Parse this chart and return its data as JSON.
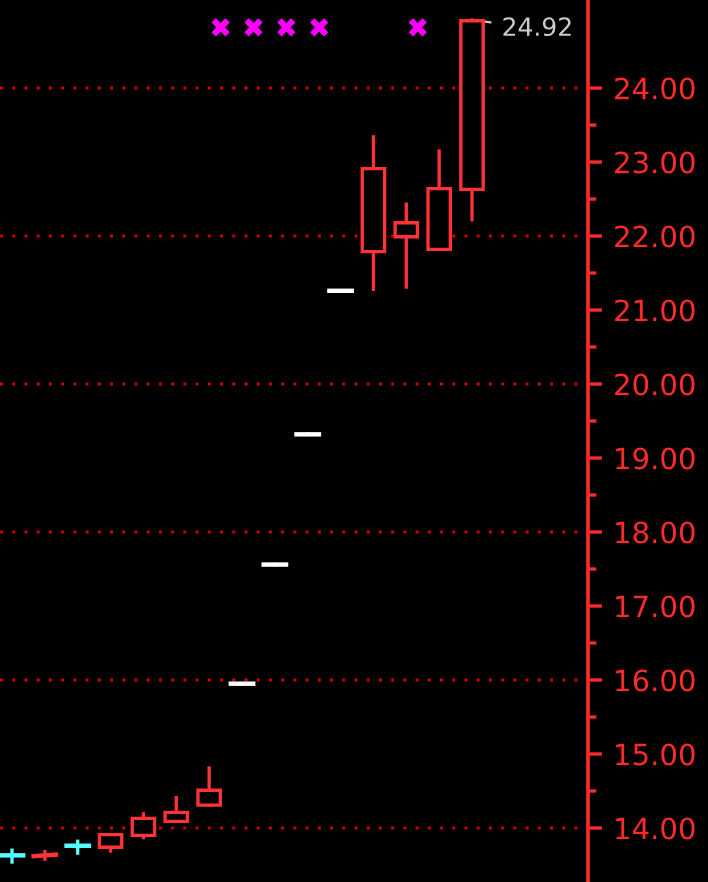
{
  "chart_data": {
    "type": "candlestick",
    "categories": [
      null,
      null,
      null,
      null,
      null,
      null,
      null,
      null,
      null,
      null,
      null,
      null,
      null,
      null,
      null
    ],
    "ohlc": [
      [
        13.63,
        13.7,
        13.54,
        13.63
      ],
      [
        13.62,
        13.68,
        13.58,
        13.64
      ],
      [
        13.76,
        13.82,
        13.66,
        13.76
      ],
      [
        13.74,
        13.91,
        13.69,
        13.91
      ],
      [
        13.9,
        14.19,
        13.87,
        14.13
      ],
      [
        14.09,
        14.41,
        14.09,
        14.21
      ],
      [
        14.31,
        14.81,
        14.31,
        14.51
      ],
      [
        15.95,
        15.95,
        15.95,
        15.95
      ],
      [
        17.56,
        17.56,
        17.56,
        17.56
      ],
      [
        19.32,
        19.32,
        19.32,
        19.32
      ],
      [
        21.26,
        21.26,
        21.26,
        21.26
      ],
      [
        21.79,
        23.34,
        21.28,
        22.91
      ],
      [
        21.99,
        22.43,
        21.31,
        22.18
      ],
      [
        21.82,
        23.15,
        21.82,
        22.64
      ],
      [
        22.63,
        24.92,
        22.22,
        24.91
      ]
    ],
    "colors": [
      "#55ffff",
      "#ff3333",
      "#55ffff",
      "#ff3333",
      "#ff3333",
      "#ff3333",
      "#ff3333",
      "#ffffff",
      "#ffffff",
      "#ffffff",
      "#ffffff",
      "#ff3333",
      "#ff3333",
      "#ff3333",
      "#ff3333"
    ],
    "ylim": [
      13.27,
      25.19
    ],
    "yticks": [
      {
        "value": 14,
        "label": "14.00"
      },
      {
        "value": 15,
        "label": "15.00"
      },
      {
        "value": 16,
        "label": "16.00"
      },
      {
        "value": 17,
        "label": "17.00"
      },
      {
        "value": 18,
        "label": "18.00"
      },
      {
        "value": 19,
        "label": "19.00"
      },
      {
        "value": 20,
        "label": "20.00"
      },
      {
        "value": 21,
        "label": "21.00"
      },
      {
        "value": 22,
        "label": "22.00"
      },
      {
        "value": 23,
        "label": "23.00"
      },
      {
        "value": 24,
        "label": "24.00"
      }
    ],
    "ref_lines": [
      {
        "axis": "y",
        "value": 14,
        "color": "#cc0000",
        "line_style": "dotted"
      },
      {
        "axis": "y",
        "value": 16,
        "color": "#cc0000",
        "line_style": "dotted"
      },
      {
        "axis": "y",
        "value": 18,
        "color": "#cc0000",
        "line_style": "dotted"
      },
      {
        "axis": "y",
        "value": 20,
        "color": "#cc0000",
        "line_style": "dotted"
      },
      {
        "axis": "y",
        "value": 22,
        "color": "#cc0000",
        "line_style": "dotted"
      },
      {
        "axis": "y",
        "value": 24,
        "color": "#cc0000",
        "line_style": "dotted"
      }
    ],
    "annotations": [
      "24.92"
    ],
    "tick_labels": "y"
  }
}
